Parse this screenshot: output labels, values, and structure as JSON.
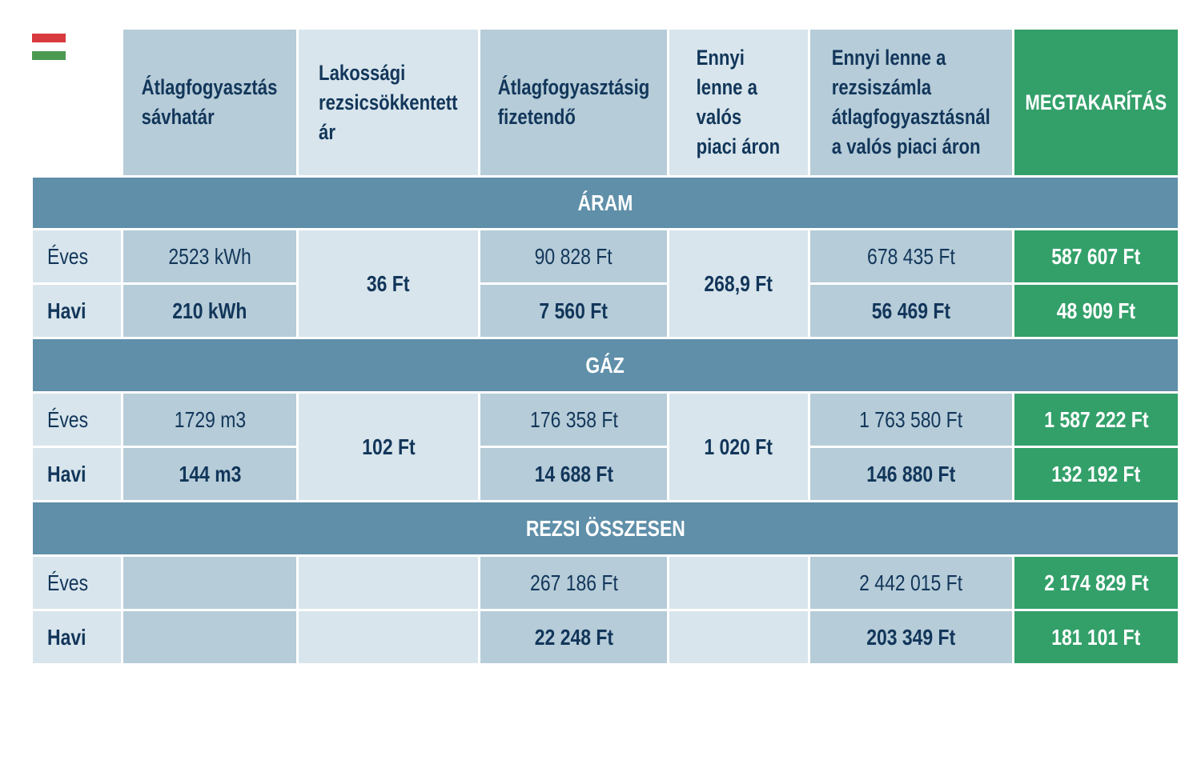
{
  "headers": {
    "col1": "Átlagfogyasztás sávhatár",
    "col2": "Lakossági rezsicsökkentett ár",
    "col3": "Átlagfogyasztásig fizetendő",
    "col4": "Ennyi lenne a valós piaci áron",
    "col5": "Ennyi lenne a rezsiszámla átlagfogyasztásnál a valós piaci áron",
    "col6": "MEGTAKARÍTÁS"
  },
  "sections": {
    "aram": {
      "title": "ÁRAM",
      "price": "36 Ft",
      "market_price": "268,9 Ft",
      "eves": {
        "label": "Éves",
        "consumption": "2523 kWh",
        "payable": "90 828 Ft",
        "market_bill": "678 435 Ft",
        "saving": "587 607 Ft"
      },
      "havi": {
        "label": "Havi",
        "consumption": "210 kWh",
        "payable": "7 560 Ft",
        "market_bill": "56 469 Ft",
        "saving": "48 909 Ft"
      }
    },
    "gaz": {
      "title": "GÁZ",
      "price": "102 Ft",
      "market_price": "1 020 Ft",
      "eves": {
        "label": "Éves",
        "consumption": "1729 m3",
        "payable": "176 358 Ft",
        "market_bill": "1 763 580 Ft",
        "saving": "1 587 222 Ft"
      },
      "havi": {
        "label": "Havi",
        "consumption": "144 m3",
        "payable": "14 688 Ft",
        "market_bill": "146 880 Ft",
        "saving": "132 192 Ft"
      }
    },
    "total": {
      "title": "REZSI ÖSSZESEN",
      "eves": {
        "label": "Éves",
        "payable": "267 186 Ft",
        "market_bill": "2 442 015 Ft",
        "saving": "2 174 829 Ft"
      },
      "havi": {
        "label": "Havi",
        "payable": "22 248 Ft",
        "market_bill": "203 349 Ft",
        "saving": "181 101 Ft"
      }
    }
  },
  "colors": {
    "header_dark": "#b6ccd8",
    "header_light": "#d8e5ec",
    "section_bar": "#5f8fa9",
    "saving_green": "#33a06a",
    "text_navy": "#12365a"
  }
}
